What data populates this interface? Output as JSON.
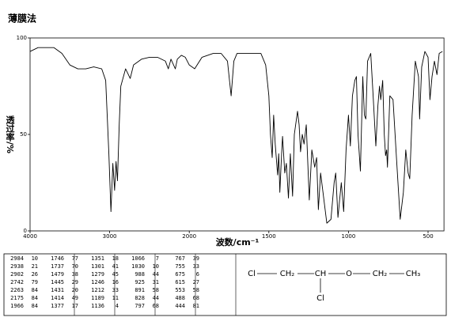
{
  "chart_data": {
    "type": "line",
    "title": "薄膜法",
    "x_label": "波数/cm⁻¹",
    "y_label": "透过率/%",
    "color": "#000000",
    "xlim": [
      4000,
      400
    ],
    "xticks": [
      4000,
      3000,
      2000,
      1500,
      1000,
      500
    ],
    "ylim": [
      0,
      100
    ],
    "yticks": [
      0,
      50,
      100
    ],
    "x": [
      4000,
      3900,
      3700,
      3600,
      3500,
      3400,
      3300,
      3200,
      3100,
      3050,
      3010,
      2984,
      2960,
      2938,
      2920,
      2902,
      2880,
      2860,
      2800,
      2742,
      2700,
      2600,
      2500,
      2400,
      2300,
      2263,
      2230,
      2175,
      2150,
      2100,
      2050,
      2000,
      1966,
      1920,
      1850,
      1800,
      1760,
      1746,
      1737,
      1720,
      1700,
      1650,
      1600,
      1550,
      1520,
      1500,
      1490,
      1479,
      1470,
      1460,
      1445,
      1438,
      1431,
      1420,
      1414,
      1400,
      1390,
      1377,
      1365,
      1351,
      1340,
      1320,
      1310,
      1301,
      1290,
      1279,
      1265,
      1246,
      1230,
      1212,
      1200,
      1189,
      1175,
      1160,
      1136,
      1110,
      1090,
      1080,
      1066,
      1045,
      1030,
      1015,
      1000,
      988,
      975,
      960,
      950,
      940,
      925,
      910,
      900,
      891,
      880,
      860,
      845,
      828,
      815,
      805,
      797,
      785,
      775,
      767,
      760,
      755,
      740,
      720,
      700,
      675,
      655,
      640,
      625,
      615,
      600,
      580,
      560,
      553,
      540,
      520,
      500,
      488,
      475,
      460,
      444,
      430,
      410
    ],
    "values": [
      93,
      95,
      95,
      92,
      86,
      84,
      84,
      85,
      84,
      78,
      40,
      10,
      35,
      21,
      36,
      26,
      55,
      75,
      84,
      79,
      86,
      89,
      90,
      90,
      88,
      84,
      89,
      84,
      89,
      91,
      90,
      86,
      84,
      90,
      92,
      92,
      88,
      77,
      70,
      88,
      92,
      92,
      92,
      92,
      86,
      70,
      50,
      38,
      60,
      45,
      29,
      40,
      20,
      40,
      49,
      30,
      35,
      17,
      40,
      18,
      50,
      62,
      55,
      41,
      50,
      45,
      55,
      16,
      42,
      33,
      38,
      11,
      30,
      20,
      4,
      6,
      25,
      30,
      7,
      25,
      10,
      42,
      60,
      44,
      70,
      78,
      80,
      50,
      31,
      80,
      60,
      58,
      88,
      92,
      70,
      44,
      65,
      75,
      68,
      78,
      50,
      39,
      42,
      33,
      70,
      68,
      40,
      6,
      20,
      42,
      30,
      27,
      60,
      88,
      80,
      58,
      85,
      93,
      90,
      68,
      80,
      88,
      81,
      92,
      93
    ]
  },
  "table": {
    "columns": [
      [
        [
          "2984",
          "10"
        ],
        [
          "2938",
          "21"
        ],
        [
          "2902",
          "26"
        ],
        [
          "2742",
          "79"
        ],
        [
          "2263",
          "84"
        ],
        [
          "2175",
          "84"
        ],
        [
          "1966",
          "84"
        ]
      ],
      [
        [
          "1746",
          "77"
        ],
        [
          "1737",
          "70"
        ],
        [
          "1479",
          "38"
        ],
        [
          "1445",
          "29"
        ],
        [
          "1431",
          "20"
        ],
        [
          "1414",
          "49"
        ],
        [
          "1377",
          "17"
        ]
      ],
      [
        [
          "1351",
          "18"
        ],
        [
          "1301",
          "41"
        ],
        [
          "1279",
          "45"
        ],
        [
          "1246",
          "16"
        ],
        [
          "1212",
          "33"
        ],
        [
          "1189",
          "11"
        ],
        [
          "1136",
          "4"
        ]
      ],
      [
        [
          "1066",
          "7"
        ],
        [
          "1030",
          "10"
        ],
        [
          "988",
          "44"
        ],
        [
          "925",
          "31"
        ],
        [
          "891",
          "58"
        ],
        [
          "828",
          "44"
        ],
        [
          "797",
          "68"
        ]
      ],
      [
        [
          "767",
          "39"
        ],
        [
          "755",
          "33"
        ],
        [
          "675",
          "6"
        ],
        [
          "615",
          "27"
        ],
        [
          "553",
          "58"
        ],
        [
          "488",
          "68"
        ],
        [
          "444",
          "81"
        ]
      ]
    ]
  },
  "structure": {
    "nodes": [
      "Cl",
      "CH₂",
      "CH",
      "O",
      "CH₂",
      "CH₃",
      "Cl"
    ]
  }
}
